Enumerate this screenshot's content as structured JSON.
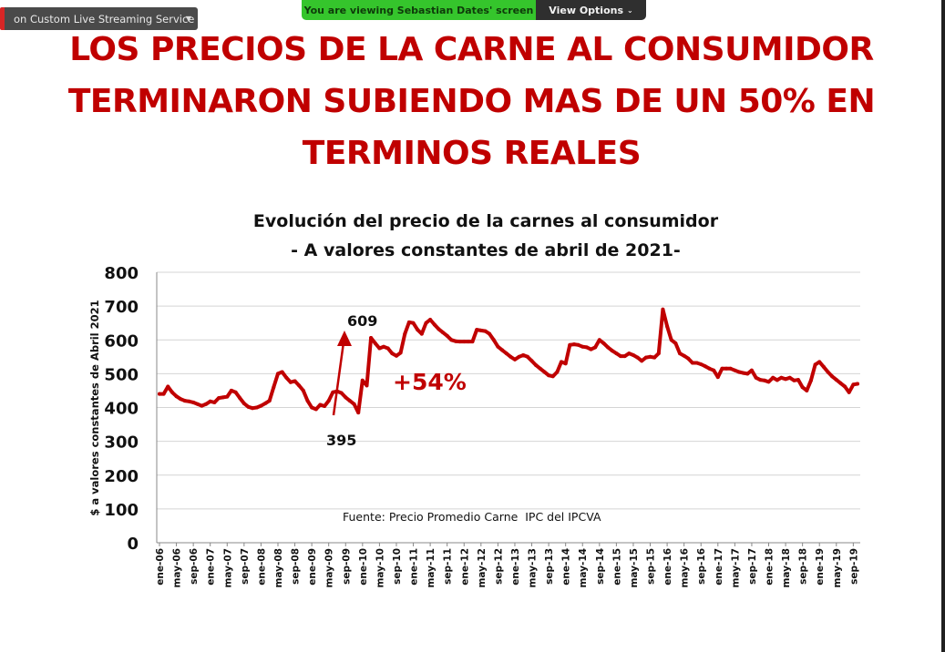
{
  "overlay": {
    "stream_label": "on Custom Live Streaming Service",
    "share_message": "You are viewing Sebastian Dates' screen",
    "view_options_label": "View Options"
  },
  "slide": {
    "title_lines": [
      "LOS PRECIOS DE LA CARNE AL CONSUMIDOR",
      "TERMINARON SUBIENDO MAS DE UN 50% EN",
      "TERMINOS REALES"
    ],
    "title_color": "#c00000"
  },
  "chart_data": {
    "type": "line",
    "title": "Evolución del precio de la carnes al consumidor",
    "subtitle": "- A valores constantes de abril de 2021-",
    "ylabel": "$ a valores constantes de Abril 2021",
    "ylim": [
      0,
      800
    ],
    "yticks": [
      0,
      100,
      200,
      300,
      400,
      500,
      600,
      700,
      800
    ],
    "grid": true,
    "line_color": "#c00000",
    "source_note": "Fuente: Precio Promedio Carne  IPC del IPCVA",
    "x_tick_labels": [
      "ene-06",
      "may-06",
      "sep-06",
      "ene-07",
      "may-07",
      "sep-07",
      "ene-08",
      "may-08",
      "sep-08",
      "ene-09",
      "may-09",
      "sep-09",
      "ene-10",
      "may-10",
      "sep-10",
      "ene-11",
      "may-11",
      "sep-11",
      "ene-12",
      "may-12",
      "sep-12",
      "ene-13",
      "may-13",
      "sep-13",
      "ene-14",
      "may-14",
      "sep-14",
      "ene-15",
      "may-15",
      "sep-15",
      "ene-16",
      "may-16",
      "sep-16",
      "ene-17",
      "may-17",
      "sep-17",
      "ene-18",
      "may-18",
      "sep-18",
      "ene-19",
      "may-19",
      "sep-19"
    ],
    "series": [
      {
        "values": [
          440,
          440,
          462,
          445,
          433,
          425,
          420,
          418,
          415,
          410,
          405,
          410,
          418,
          415,
          428,
          430,
          432,
          450,
          445,
          428,
          412,
          402,
          398,
          400,
          405,
          412,
          420,
          460,
          500,
          505,
          488,
          475,
          478,
          465,
          450,
          420,
          400,
          395,
          408,
          404,
          420,
          445,
          448,
          443,
          430,
          420,
          410,
          385,
          480,
          465,
          606,
          590,
          575,
          580,
          575,
          560,
          553,
          562,
          618,
          652,
          650,
          630,
          618,
          650,
          660,
          645,
          632,
          622,
          612,
          600,
          596,
          595,
          595,
          595,
          595,
          630,
          628,
          626,
          618,
          600,
          580,
          570,
          560,
          550,
          542,
          550,
          555,
          550,
          538,
          525,
          515,
          505,
          495,
          492,
          505,
          535,
          530,
          585,
          587,
          585,
          580,
          578,
          572,
          578,
          600,
          590,
          578,
          568,
          560,
          552,
          552,
          560,
          555,
          548,
          538,
          548,
          550,
          548,
          560,
          690,
          640,
          600,
          590,
          560,
          553,
          545,
          532,
          532,
          528,
          522,
          515,
          510,
          490,
          515,
          515,
          515,
          510,
          505,
          502,
          500,
          510,
          488,
          482,
          480,
          476,
          488,
          481,
          488,
          484,
          488,
          480,
          482,
          460,
          450,
          480,
          527,
          535,
          520,
          505,
          492,
          482,
          472,
          462,
          445,
          468,
          470
        ]
      }
    ],
    "annotations": [
      {
        "text": "609"
      },
      {
        "text": "395"
      },
      {
        "text": "+54%"
      }
    ]
  }
}
